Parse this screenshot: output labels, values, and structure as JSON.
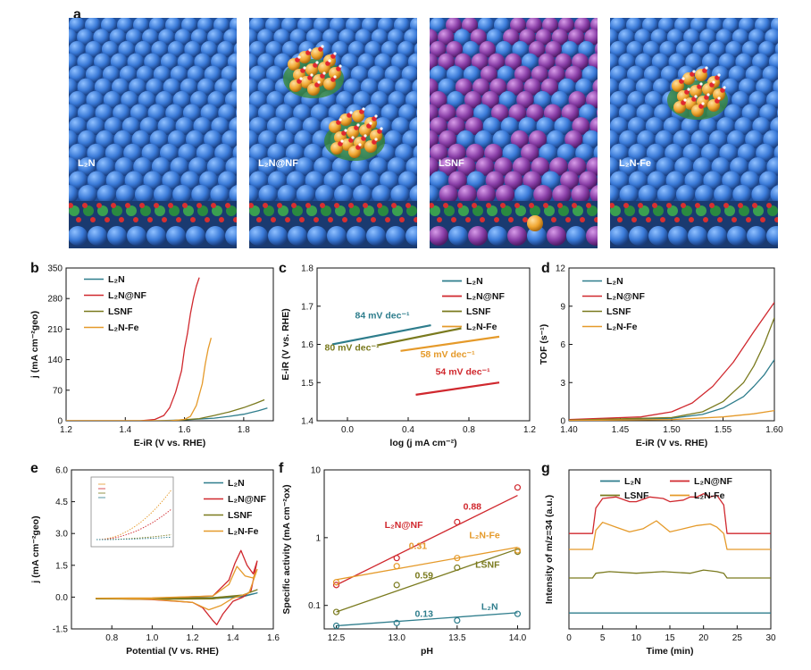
{
  "figure": {
    "panel_letters": [
      "a",
      "b",
      "c",
      "d",
      "e",
      "f",
      "g"
    ]
  },
  "renders": [
    {
      "label": "L₂N",
      "kind": "plain",
      "cluster": "none",
      "top_color": "#3a7ad8",
      "alt_color": "#3a7ad8"
    },
    {
      "label": "L₂N@NF",
      "kind": "plain",
      "cluster": "two",
      "top_color": "#3a7ad8",
      "alt_color": "#3a7ad8"
    },
    {
      "label": "LSNF",
      "kind": "mixed",
      "cluster": "none",
      "top_color": "#8a3fa8",
      "alt_color": "#3a7ad8"
    },
    {
      "label": "L₂N-Fe",
      "kind": "plain",
      "cluster": "one",
      "top_color": "#3a7ad8",
      "alt_color": "#3a7ad8"
    }
  ],
  "colors": {
    "L2N": "#2e7d8c",
    "L2NNF": "#d0282e",
    "LSNF": "#7a7a1e",
    "L2NFe": "#e59a2a"
  },
  "legend_names": [
    "L₂N",
    "L₂N@NF",
    "LSNF",
    "L₂N-Fe"
  ],
  "chart_data": [
    {
      "panel": "b",
      "type": "line",
      "xlabel": "E-iR (V vs. RHE)",
      "ylabel": "j (mA cm⁻²geo)",
      "xlim": [
        1.2,
        1.9
      ],
      "ylim": [
        0,
        350
      ],
      "xticks": [
        "1.2",
        "1.4",
        "1.6",
        "1.8"
      ],
      "xtick_vals": [
        1.2,
        1.4,
        1.6,
        1.8
      ],
      "yticks": [
        "0",
        "70",
        "140",
        "210",
        "280",
        "350"
      ],
      "ytick_vals": [
        0,
        70,
        140,
        210,
        280,
        350
      ],
      "series": [
        {
          "name": "L₂N",
          "key": "L2N",
          "x": [
            1.2,
            1.5,
            1.6,
            1.7,
            1.75,
            1.8,
            1.85,
            1.88
          ],
          "y": [
            0,
            0,
            2,
            6,
            10,
            15,
            23,
            29
          ]
        },
        {
          "name": "L₂N@NF",
          "key": "L2NNF",
          "x": [
            1.2,
            1.45,
            1.5,
            1.53,
            1.55,
            1.57,
            1.59,
            1.6,
            1.61,
            1.62,
            1.63,
            1.64,
            1.65
          ],
          "y": [
            0,
            0,
            3,
            12,
            30,
            65,
            115,
            165,
            200,
            245,
            280,
            308,
            328
          ]
        },
        {
          "name": "LSNF",
          "key": "LSNF",
          "x": [
            1.2,
            1.55,
            1.65,
            1.7,
            1.75,
            1.8,
            1.84,
            1.87
          ],
          "y": [
            0,
            0,
            5,
            12,
            20,
            30,
            40,
            48
          ]
        },
        {
          "name": "L₂N-Fe",
          "key": "L2NFe",
          "x": [
            1.2,
            1.55,
            1.6,
            1.62,
            1.64,
            1.66,
            1.67,
            1.68,
            1.69
          ],
          "y": [
            0,
            0,
            3,
            10,
            35,
            85,
            130,
            165,
            190
          ]
        }
      ]
    },
    {
      "panel": "c",
      "type": "line",
      "xlabel": "log (j mA cm⁻²)",
      "ylabel": "E-iR (V vs. RHE)",
      "xlim": [
        -0.2,
        1.2
      ],
      "ylim": [
        1.4,
        1.8
      ],
      "xticks": [
        "0.0",
        "0.4",
        "0.8",
        "1.2"
      ],
      "xtick_vals": [
        0.0,
        0.4,
        0.8,
        1.2
      ],
      "yticks": [
        "1.4",
        "1.5",
        "1.6",
        "1.7",
        "1.8"
      ],
      "ytick_vals": [
        1.4,
        1.5,
        1.6,
        1.7,
        1.8
      ],
      "series": [
        {
          "name": "L₂N",
          "key": "L2N",
          "x": [
            -0.1,
            0.55
          ],
          "y": [
            1.6,
            1.65
          ]
        },
        {
          "name": "L₂N@NF",
          "key": "L2NNF",
          "x": [
            0.45,
            1.0
          ],
          "y": [
            1.468,
            1.5
          ]
        },
        {
          "name": "LSNF",
          "key": "LSNF",
          "x": [
            0.2,
            0.75
          ],
          "y": [
            1.598,
            1.642
          ]
        },
        {
          "name": "L₂N-Fe",
          "key": "L2NFe",
          "x": [
            0.35,
            1.0
          ],
          "y": [
            1.583,
            1.62
          ]
        }
      ],
      "annotations": [
        {
          "text": "84 mV dec⁻¹",
          "key": "L2N",
          "x": 0.05,
          "y": 1.668
        },
        {
          "text": "80 mV dec⁻¹",
          "key": "LSNF",
          "x": -0.15,
          "y": 1.584
        },
        {
          "text": "58 mV dec⁻¹",
          "key": "L2NFe",
          "x": 0.48,
          "y": 1.566
        },
        {
          "text": "54 mV dec⁻¹",
          "key": "L2NNF",
          "x": 0.58,
          "y": 1.52
        }
      ]
    },
    {
      "panel": "d",
      "type": "line",
      "xlabel": "E-iR (V vs. RHE)",
      "ylabel": "TOF (s⁻¹)",
      "xlim": [
        1.4,
        1.6
      ],
      "ylim": [
        0,
        12
      ],
      "xticks": [
        "1.40",
        "1.45",
        "1.50",
        "1.55",
        "1.60"
      ],
      "xtick_vals": [
        1.4,
        1.45,
        1.5,
        1.55,
        1.6
      ],
      "yticks": [
        "0",
        "3",
        "6",
        "9",
        "12"
      ],
      "ytick_vals": [
        0,
        3,
        6,
        9,
        12
      ],
      "series": [
        {
          "name": "L₂N",
          "key": "L2N",
          "x": [
            1.4,
            1.5,
            1.53,
            1.55,
            1.57,
            1.58,
            1.59,
            1.6
          ],
          "y": [
            0.05,
            0.2,
            0.5,
            1.0,
            1.9,
            2.7,
            3.6,
            4.8
          ]
        },
        {
          "name": "L₂N@NF",
          "key": "L2NNF",
          "x": [
            1.4,
            1.47,
            1.5,
            1.52,
            1.54,
            1.56,
            1.58,
            1.6
          ],
          "y": [
            0.1,
            0.3,
            0.7,
            1.4,
            2.7,
            4.6,
            7.0,
            9.3
          ]
        },
        {
          "name": "LSNF",
          "key": "LSNF",
          "x": [
            1.4,
            1.5,
            1.53,
            1.55,
            1.57,
            1.58,
            1.59,
            1.6
          ],
          "y": [
            0.05,
            0.25,
            0.7,
            1.5,
            3.0,
            4.3,
            6.0,
            8.1
          ]
        },
        {
          "name": "L₂N-Fe",
          "key": "L2NFe",
          "x": [
            1.4,
            1.5,
            1.55,
            1.58,
            1.6
          ],
          "y": [
            0.02,
            0.1,
            0.3,
            0.55,
            0.8
          ]
        }
      ]
    },
    {
      "panel": "e",
      "type": "line",
      "xlabel": "Potential (V vs. RHE)",
      "ylabel": "j (mA cm⁻²geo)",
      "xlim": [
        0.6,
        1.6
      ],
      "ylim": [
        -1.5,
        6.0
      ],
      "xticks": [
        "0.8",
        "1.0",
        "1.2",
        "1.4",
        "1.6"
      ],
      "xtick_vals": [
        0.8,
        1.0,
        1.2,
        1.4,
        1.6
      ],
      "yticks": [
        "-1.5",
        "0.0",
        "1.5",
        "3.0",
        "4.5",
        "6.0"
      ],
      "ytick_vals": [
        -1.5,
        0,
        1.5,
        3.0,
        4.5,
        6.0
      ],
      "series": [
        {
          "name": "L₂N",
          "key": "L2N",
          "x": [
            0.72,
            1.0,
            1.3,
            1.45,
            1.52,
            1.45,
            1.3,
            1.0,
            0.72
          ],
          "y": [
            -0.06,
            -0.05,
            -0.02,
            0.05,
            0.2,
            0.02,
            -0.07,
            -0.08,
            -0.06
          ]
        },
        {
          "name": "L₂N@NF",
          "key": "L2NNF",
          "x": [
            0.72,
            1.0,
            1.3,
            1.38,
            1.41,
            1.44,
            1.47,
            1.5,
            1.52,
            1.49,
            1.45,
            1.4,
            1.35,
            1.32,
            1.3,
            1.25,
            1.2,
            1.0,
            0.72
          ],
          "y": [
            -0.05,
            -0.05,
            0.05,
            0.8,
            1.6,
            2.2,
            1.5,
            1.1,
            1.7,
            0.3,
            0.0,
            -0.2,
            -0.8,
            -1.3,
            -1.1,
            -0.5,
            -0.25,
            -0.12,
            -0.05
          ]
        },
        {
          "name": "LSNF",
          "key": "LSNF",
          "x": [
            0.72,
            1.0,
            1.3,
            1.45,
            1.52,
            1.45,
            1.3,
            1.0,
            0.72
          ],
          "y": [
            -0.08,
            -0.07,
            -0.03,
            0.1,
            0.35,
            0.1,
            -0.08,
            -0.1,
            -0.08
          ]
        },
        {
          "name": "L₂N-Fe",
          "key": "L2NFe",
          "x": [
            0.72,
            1.0,
            1.3,
            1.38,
            1.42,
            1.46,
            1.5,
            1.52,
            1.48,
            1.4,
            1.34,
            1.28,
            1.2,
            1.0,
            0.72
          ],
          "y": [
            -0.05,
            -0.04,
            0.05,
            0.6,
            1.45,
            1.0,
            0.9,
            1.3,
            0.2,
            -0.05,
            -0.4,
            -0.6,
            -0.25,
            -0.1,
            -0.05
          ]
        }
      ]
    },
    {
      "panel": "f",
      "type": "scatter",
      "xlabel": "pH",
      "ylabel": "Specific activity (mA cm⁻²ox)",
      "xlim": [
        12.4,
        14.1
      ],
      "yscale": "log",
      "ylim": [
        0.045,
        10
      ],
      "xticks": [
        "12.5",
        "13.0",
        "13.5",
        "14.0"
      ],
      "xtick_vals": [
        12.5,
        13.0,
        13.5,
        14.0
      ],
      "yticks": [
        "0.1",
        "1",
        "10"
      ],
      "ytick_vals": [
        0.1,
        1,
        10
      ],
      "series": [
        {
          "name": "L₂N",
          "key": "L2N",
          "x": [
            12.5,
            13.0,
            13.5,
            14.0
          ],
          "y": [
            0.05,
            0.055,
            0.06,
            0.075
          ],
          "fit": [
            0.05,
            0.078
          ]
        },
        {
          "name": "L₂N@NF",
          "key": "L2NNF",
          "x": [
            12.5,
            13.0,
            13.5,
            14.0
          ],
          "y": [
            0.2,
            0.5,
            1.7,
            5.5
          ],
          "fit": [
            0.2,
            4.2
          ]
        },
        {
          "name": "LSNF",
          "key": "LSNF",
          "x": [
            12.5,
            13.0,
            13.5,
            14.0
          ],
          "y": [
            0.08,
            0.2,
            0.36,
            0.62
          ],
          "fit": [
            0.08,
            0.68
          ]
        },
        {
          "name": "L₂N-Fe",
          "key": "L2NFe",
          "x": [
            12.5,
            13.0,
            13.5,
            14.0
          ],
          "y": [
            0.22,
            0.38,
            0.5,
            0.65
          ],
          "fit": [
            0.24,
            0.72
          ]
        }
      ],
      "annotations": [
        {
          "text": "0.88",
          "key": "L2NNF",
          "x": 13.55,
          "y": 2.6
        },
        {
          "text": "L₂N@NF",
          "key": "L2NNF",
          "x": 12.9,
          "y": 1.4
        },
        {
          "text": "0.31",
          "key": "L2NFe",
          "x": 13.1,
          "y": 0.68
        },
        {
          "text": "L₂N-Fe",
          "key": "L2NFe",
          "x": 13.6,
          "y": 0.98
        },
        {
          "text": "0.59",
          "key": "LSNF",
          "x": 13.15,
          "y": 0.25
        },
        {
          "text": "LSNF",
          "key": "LSNF",
          "x": 13.65,
          "y": 0.36
        },
        {
          "text": "0.13",
          "key": "L2N",
          "x": 13.15,
          "y": 0.068
        },
        {
          "text": "L₂N",
          "key": "L2N",
          "x": 13.7,
          "y": 0.086
        }
      ]
    },
    {
      "panel": "g",
      "type": "line",
      "xlabel": "Time (min)",
      "ylabel": "Intensity of m/z=34 (a.u.)",
      "xlim": [
        0,
        30
      ],
      "ylim": [
        0,
        1
      ],
      "xticks": [
        "0",
        "5",
        "10",
        "15",
        "20",
        "25",
        "30"
      ],
      "xtick_vals": [
        0,
        5,
        10,
        15,
        20,
        25,
        30
      ],
      "yticks": [],
      "ytick_vals": [],
      "series": [
        {
          "name": "L₂N",
          "key": "L2N",
          "x": [
            0,
            30
          ],
          "y": [
            0.1,
            0.1
          ]
        },
        {
          "name": "L₂N@NF",
          "key": "L2NNF",
          "x": [
            0,
            3.5,
            4,
            5,
            7,
            9,
            10,
            12,
            14,
            15,
            17,
            18,
            19,
            20,
            21,
            22,
            23,
            23.5,
            30
          ],
          "y": [
            0.6,
            0.6,
            0.76,
            0.82,
            0.83,
            0.8,
            0.8,
            0.83,
            0.82,
            0.8,
            0.81,
            0.83,
            0.83,
            0.85,
            0.83,
            0.84,
            0.78,
            0.6,
            0.6
          ]
        },
        {
          "name": "LSNF",
          "key": "LSNF",
          "x": [
            0,
            3.5,
            4,
            6,
            10,
            14,
            18,
            20,
            22,
            23,
            23.5,
            30
          ],
          "y": [
            0.32,
            0.32,
            0.35,
            0.36,
            0.35,
            0.36,
            0.35,
            0.37,
            0.36,
            0.35,
            0.32,
            0.32
          ]
        },
        {
          "name": "L₂N-Fe",
          "key": "L2NFe",
          "x": [
            0,
            3.5,
            4,
            5,
            7,
            9,
            11,
            13,
            15,
            17,
            19,
            21,
            22,
            23,
            23.5,
            30
          ],
          "y": [
            0.5,
            0.5,
            0.62,
            0.67,
            0.64,
            0.61,
            0.63,
            0.68,
            0.61,
            0.63,
            0.65,
            0.66,
            0.64,
            0.6,
            0.5,
            0.5
          ]
        }
      ]
    }
  ]
}
